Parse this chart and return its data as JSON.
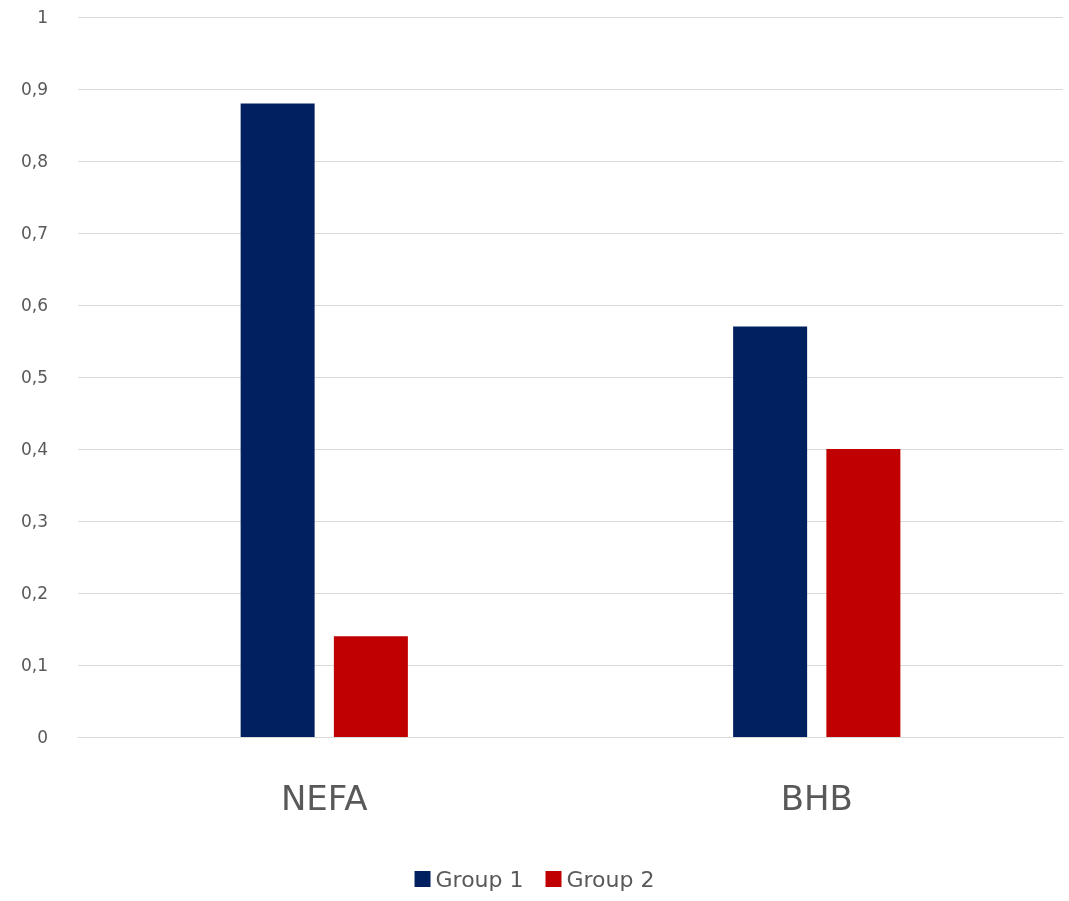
{
  "chart_data": {
    "type": "bar",
    "categories": [
      "NEFA",
      "BHB"
    ],
    "series": [
      {
        "name": "Group 1",
        "color": "#002060",
        "values": [
          0.88,
          0.57
        ]
      },
      {
        "name": "Group 2",
        "color": "#c00000",
        "values": [
          0.14,
          0.4
        ]
      }
    ],
    "ylim": [
      0,
      1
    ],
    "yticks": [
      0,
      {
        "value": 0.1,
        "label": "0,1"
      },
      {
        "value": 0.2,
        "label": "0,2"
      },
      {
        "value": 0.3,
        "label": "0,3"
      },
      {
        "value": 0.4,
        "label": "0,4"
      },
      {
        "value": 0.5,
        "label": "0,5"
      },
      {
        "value": 0.6,
        "label": "0,6"
      },
      {
        "value": 0.7,
        "label": "0,7"
      },
      {
        "value": 0.8,
        "label": "0,8"
      },
      {
        "value": 0.9,
        "label": "0,9"
      },
      1
    ],
    "grid": "y",
    "legend": "bottom"
  }
}
